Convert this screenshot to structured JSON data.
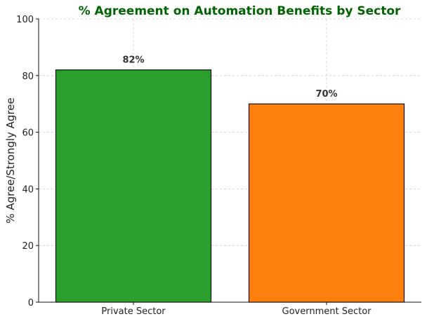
{
  "chart_data": {
    "type": "bar",
    "title": "% Agreement on Automation Benefits by Sector",
    "title_color": "#006400",
    "xlabel": "",
    "ylabel": "% Agree/Strongly Agree",
    "categories": [
      "Private Sector",
      "Government Sector"
    ],
    "values": [
      82,
      70
    ],
    "data_labels": [
      "82%",
      "70%"
    ],
    "colors": [
      "#2ca02c",
      "#ff7f0e"
    ],
    "ylim": [
      0,
      100
    ],
    "yticks": [
      "0",
      "20",
      "40",
      "60",
      "80",
      "100"
    ],
    "grid": true
  }
}
